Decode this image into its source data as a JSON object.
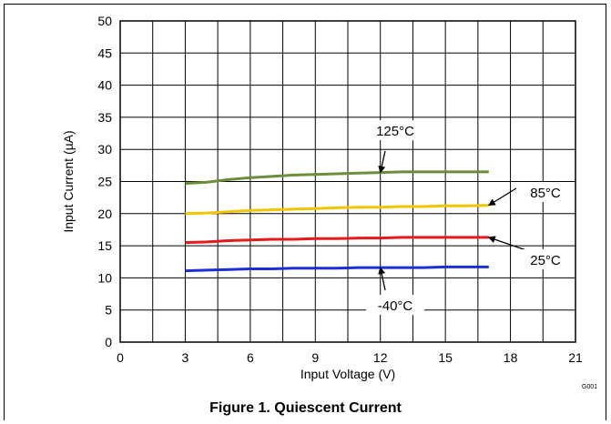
{
  "figure": {
    "caption": "Figure 1. Quiescent Current",
    "graph_id": "G001"
  },
  "chart_data": {
    "type": "line",
    "xlabel": "Input Voltage (V)",
    "ylabel": "Input Current (µA)",
    "xlim": [
      0,
      21
    ],
    "ylim": [
      0,
      50
    ],
    "xticks": [
      0,
      3,
      6,
      9,
      12,
      15,
      18,
      21
    ],
    "yticks": [
      0,
      5,
      10,
      15,
      20,
      25,
      30,
      35,
      40,
      45,
      50
    ],
    "grid": true,
    "series": [
      {
        "name": "125°C",
        "color": "#6b8e3a",
        "x": [
          3,
          4,
          5,
          6,
          7,
          8,
          9,
          10,
          11,
          12,
          13,
          14,
          15,
          16,
          17
        ],
        "y": [
          24.7,
          24.9,
          25.3,
          25.6,
          25.8,
          26.0,
          26.1,
          26.2,
          26.3,
          26.4,
          26.5,
          26.5,
          26.5,
          26.5,
          26.5
        ]
      },
      {
        "name": "85°C",
        "color": "#f2c500",
        "x": [
          3,
          4,
          5,
          6,
          7,
          8,
          9,
          10,
          11,
          12,
          13,
          14,
          15,
          16,
          17
        ],
        "y": [
          20.0,
          20.1,
          20.3,
          20.5,
          20.6,
          20.7,
          20.8,
          20.9,
          21.0,
          21.0,
          21.1,
          21.1,
          21.2,
          21.2,
          21.3
        ]
      },
      {
        "name": "25°C",
        "color": "#e31b1b",
        "x": [
          3,
          4,
          5,
          6,
          7,
          8,
          9,
          10,
          11,
          12,
          13,
          14,
          15,
          16,
          17
        ],
        "y": [
          15.5,
          15.6,
          15.8,
          15.9,
          16.0,
          16.0,
          16.1,
          16.1,
          16.2,
          16.2,
          16.3,
          16.3,
          16.3,
          16.3,
          16.3
        ]
      },
      {
        "name": "-40°C",
        "color": "#1a2fd6",
        "x": [
          3,
          4,
          5,
          6,
          7,
          8,
          9,
          10,
          11,
          12,
          13,
          14,
          15,
          16,
          17
        ],
        "y": [
          11.1,
          11.2,
          11.3,
          11.4,
          11.4,
          11.5,
          11.5,
          11.5,
          11.6,
          11.6,
          11.6,
          11.6,
          11.7,
          11.7,
          11.7
        ]
      }
    ],
    "annotations": [
      {
        "text": "125°C",
        "series": "125°C",
        "arrow_to": [
          12,
          26.4
        ]
      },
      {
        "text": "85°C",
        "series": "85°C",
        "arrow_to": [
          17,
          21.3
        ]
      },
      {
        "text": "25°C",
        "series": "25°C",
        "arrow_to": [
          17,
          16.3
        ]
      },
      {
        "text": "-40°C",
        "series": "-40°C",
        "arrow_to": [
          12,
          11.6
        ]
      }
    ]
  }
}
